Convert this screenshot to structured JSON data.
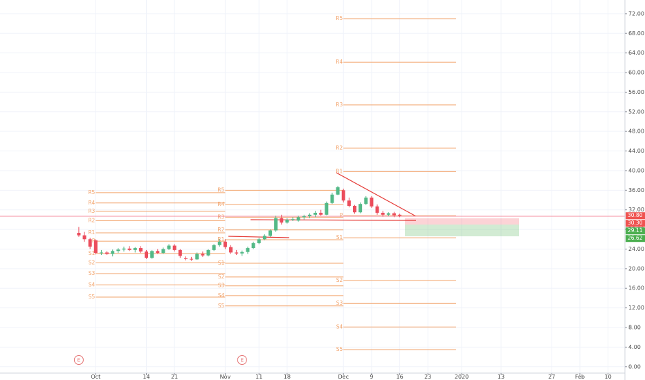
{
  "chart_data": {
    "type": "candlestick",
    "x": [
      -3,
      -2,
      -1,
      0,
      1,
      2,
      3,
      4,
      5,
      6,
      7,
      8,
      9,
      10,
      11,
      12,
      13,
      14,
      15,
      16,
      17,
      18,
      19,
      20,
      21,
      22,
      23,
      24,
      25,
      26,
      27,
      28,
      29,
      30,
      31,
      32,
      33,
      34,
      35,
      36,
      37,
      38,
      39,
      40,
      41,
      42,
      43,
      44,
      45,
      46,
      47,
      48,
      49,
      50,
      51,
      52,
      53,
      54
    ],
    "open": [
      27.3,
      26.8,
      26.0,
      25.8,
      23.2,
      23.3,
      23.0,
      23.6,
      23.9,
      24.1,
      23.8,
      24.2,
      23.5,
      22.2,
      23.6,
      23.2,
      24.0,
      24.7,
      23.8,
      22.1,
      22.0,
      21.9,
      23.0,
      22.7,
      23.8,
      24.8,
      25.5,
      24.4,
      23.3,
      23.1,
      23.4,
      24.2,
      25.2,
      26.0,
      26.7,
      27.8,
      30.3,
      29.4,
      30.0,
      29.8,
      30.5,
      30.7,
      31.0,
      31.4,
      31.0,
      33.4,
      35.1,
      36.0,
      33.9,
      32.8,
      31.5,
      33.2,
      34.5,
      32.7,
      31.4,
      31.0,
      31.3,
      31.0
    ],
    "high": [
      28.5,
      27.5,
      26.3,
      26.0,
      23.8,
      23.6,
      23.9,
      24.2,
      24.5,
      24.6,
      24.4,
      24.6,
      23.8,
      23.8,
      24.0,
      24.3,
      25.0,
      25.0,
      24.0,
      22.5,
      22.4,
      23.3,
      23.5,
      24.0,
      25.0,
      26.0,
      26.0,
      24.8,
      23.8,
      23.7,
      24.5,
      25.5,
      26.3,
      27.0,
      28.0,
      30.8,
      31.0,
      30.3,
      30.5,
      30.8,
      31.0,
      31.3,
      31.8,
      32.0,
      33.7,
      35.5,
      36.9,
      36.3,
      34.5,
      33.0,
      33.5,
      34.8,
      34.8,
      33.1,
      31.8,
      31.5,
      31.6,
      31.2
    ],
    "low": [
      26.5,
      25.5,
      24.0,
      22.9,
      22.8,
      22.8,
      22.5,
      23.2,
      23.5,
      23.6,
      23.3,
      23.2,
      22.0,
      22.0,
      23.0,
      23.0,
      23.8,
      23.5,
      22.2,
      21.7,
      21.6,
      21.8,
      22.4,
      22.5,
      23.6,
      24.5,
      24.0,
      23.0,
      22.8,
      22.6,
      23.0,
      24.0,
      25.0,
      25.8,
      26.5,
      27.5,
      29.0,
      29.2,
      29.7,
      29.6,
      30.0,
      30.3,
      30.5,
      30.8,
      30.9,
      33.2,
      35.0,
      33.5,
      32.5,
      31.2,
      31.3,
      33.0,
      32.4,
      31.0,
      30.6,
      30.7,
      30.5,
      30.5
    ],
    "close": [
      26.8,
      26.0,
      24.5,
      23.2,
      23.3,
      23.0,
      23.6,
      23.9,
      24.1,
      23.8,
      24.2,
      23.5,
      22.2,
      23.6,
      23.2,
      24.0,
      24.7,
      23.8,
      22.6,
      22.0,
      21.9,
      23.0,
      22.7,
      23.8,
      24.8,
      25.5,
      24.4,
      23.3,
      23.1,
      23.4,
      24.2,
      25.2,
      26.0,
      26.7,
      27.8,
      30.3,
      29.4,
      30.0,
      30.1,
      30.5,
      30.7,
      31.0,
      31.4,
      31.0,
      33.4,
      35.1,
      36.6,
      33.9,
      32.8,
      31.5,
      33.2,
      34.5,
      32.7,
      31.4,
      31.0,
      31.3,
      30.9,
      30.8
    ],
    "up_color": "#53b987",
    "down_color": "#eb4d5c",
    "xlim": [
      -17,
      94
    ],
    "ylim": [
      -1.3,
      74.8
    ],
    "grid": true,
    "xticks": [
      {
        "value": 0,
        "label": "Oct"
      },
      {
        "value": 9,
        "label": "14"
      },
      {
        "value": 14,
        "label": "21"
      },
      {
        "value": 23,
        "label": "Nov"
      },
      {
        "value": 29,
        "label": "11"
      },
      {
        "value": 34,
        "label": "18"
      },
      {
        "value": 44,
        "label": "Dec"
      },
      {
        "value": 49,
        "label": "9"
      },
      {
        "value": 54,
        "label": "16"
      },
      {
        "value": 59,
        "label": "23"
      },
      {
        "value": 65,
        "label": "2020"
      },
      {
        "value": 72,
        "label": "13"
      },
      {
        "value": 81,
        "label": "27"
      },
      {
        "value": 86,
        "label": "Feb"
      },
      {
        "value": 91,
        "label": "10"
      }
    ],
    "yticks": [
      {
        "value": 0,
        "label": "0.00"
      },
      {
        "value": 4,
        "label": "4.00"
      },
      {
        "value": 8,
        "label": "8.00"
      },
      {
        "value": 12,
        "label": "12.00"
      },
      {
        "value": 16,
        "label": "16.00"
      },
      {
        "value": 20,
        "label": "20.00"
      },
      {
        "value": 24,
        "label": "24.00"
      },
      {
        "value": 28,
        "label": "28.00"
      },
      {
        "value": 32,
        "label": "32.00"
      },
      {
        "value": 36,
        "label": "36.00"
      },
      {
        "value": 40,
        "label": "40.00"
      },
      {
        "value": 44,
        "label": "44.00"
      },
      {
        "value": 48,
        "label": "48.00"
      },
      {
        "value": 52,
        "label": "52.00"
      },
      {
        "value": 56,
        "label": "56.00"
      },
      {
        "value": 60,
        "label": "60.00"
      },
      {
        "value": 64,
        "label": "64.00"
      },
      {
        "value": 68,
        "label": "68.00"
      },
      {
        "value": 72,
        "label": "72.00"
      }
    ],
    "pivot_color": "#f2a36b",
    "pivots": [
      {
        "from": 0,
        "to": 23,
        "levels": [
          {
            "name": "R5",
            "value": 35.5
          },
          {
            "name": "R4",
            "value": 33.4
          },
          {
            "name": "R3",
            "value": 31.7
          },
          {
            "name": "R2",
            "value": 29.8
          },
          {
            "name": "R1",
            "value": 27.3
          },
          {
            "name": "P",
            "value": 25.6
          },
          {
            "name": "S1",
            "value": 23.1
          },
          {
            "name": "S2",
            "value": 21.2
          },
          {
            "name": "S3",
            "value": 19.0
          },
          {
            "name": "S4",
            "value": 16.7
          },
          {
            "name": "S5",
            "value": 14.2
          }
        ]
      },
      {
        "from": 23,
        "to": 44,
        "levels": [
          {
            "name": "R5",
            "value": 36.0
          },
          {
            "name": "R4",
            "value": 33.1
          },
          {
            "name": "R3",
            "value": 30.5
          },
          {
            "name": "R2",
            "value": 27.9
          },
          {
            "name": "R1",
            "value": 25.9
          },
          {
            "name": "S1",
            "value": 21.1
          },
          {
            "name": "S2",
            "value": 18.3
          },
          {
            "name": "S3",
            "value": 16.5
          },
          {
            "name": "S4",
            "value": 14.5
          },
          {
            "name": "S5",
            "value": 12.4
          }
        ]
      },
      {
        "from": 44,
        "to": 64,
        "levels": [
          {
            "name": "R5",
            "value": 71.0
          },
          {
            "name": "R4",
            "value": 62.1
          },
          {
            "name": "R3",
            "value": 53.4
          },
          {
            "name": "R2",
            "value": 44.6
          },
          {
            "name": "R1",
            "value": 39.8
          },
          {
            "name": "P",
            "value": 30.8
          },
          {
            "name": "S1",
            "value": 26.3
          },
          {
            "name": "S2",
            "value": 17.6
          },
          {
            "name": "S3",
            "value": 12.9
          },
          {
            "name": "S4",
            "value": 8.1
          },
          {
            "name": "S5",
            "value": 3.5
          }
        ]
      }
    ],
    "price_labels": [
      {
        "value": 30.8,
        "label": "30.80",
        "color": "#ef5350"
      },
      {
        "value": 30.3,
        "label": "30.30",
        "color": "#ef5350"
      },
      {
        "value": 29.11,
        "label": "29.11",
        "color": "#4caf50"
      },
      {
        "value": 26.62,
        "label": "26.62",
        "color": "#4caf50"
      }
    ],
    "events": [
      {
        "x": -3,
        "label": "E"
      },
      {
        "x": 26,
        "label": "E"
      }
    ]
  }
}
